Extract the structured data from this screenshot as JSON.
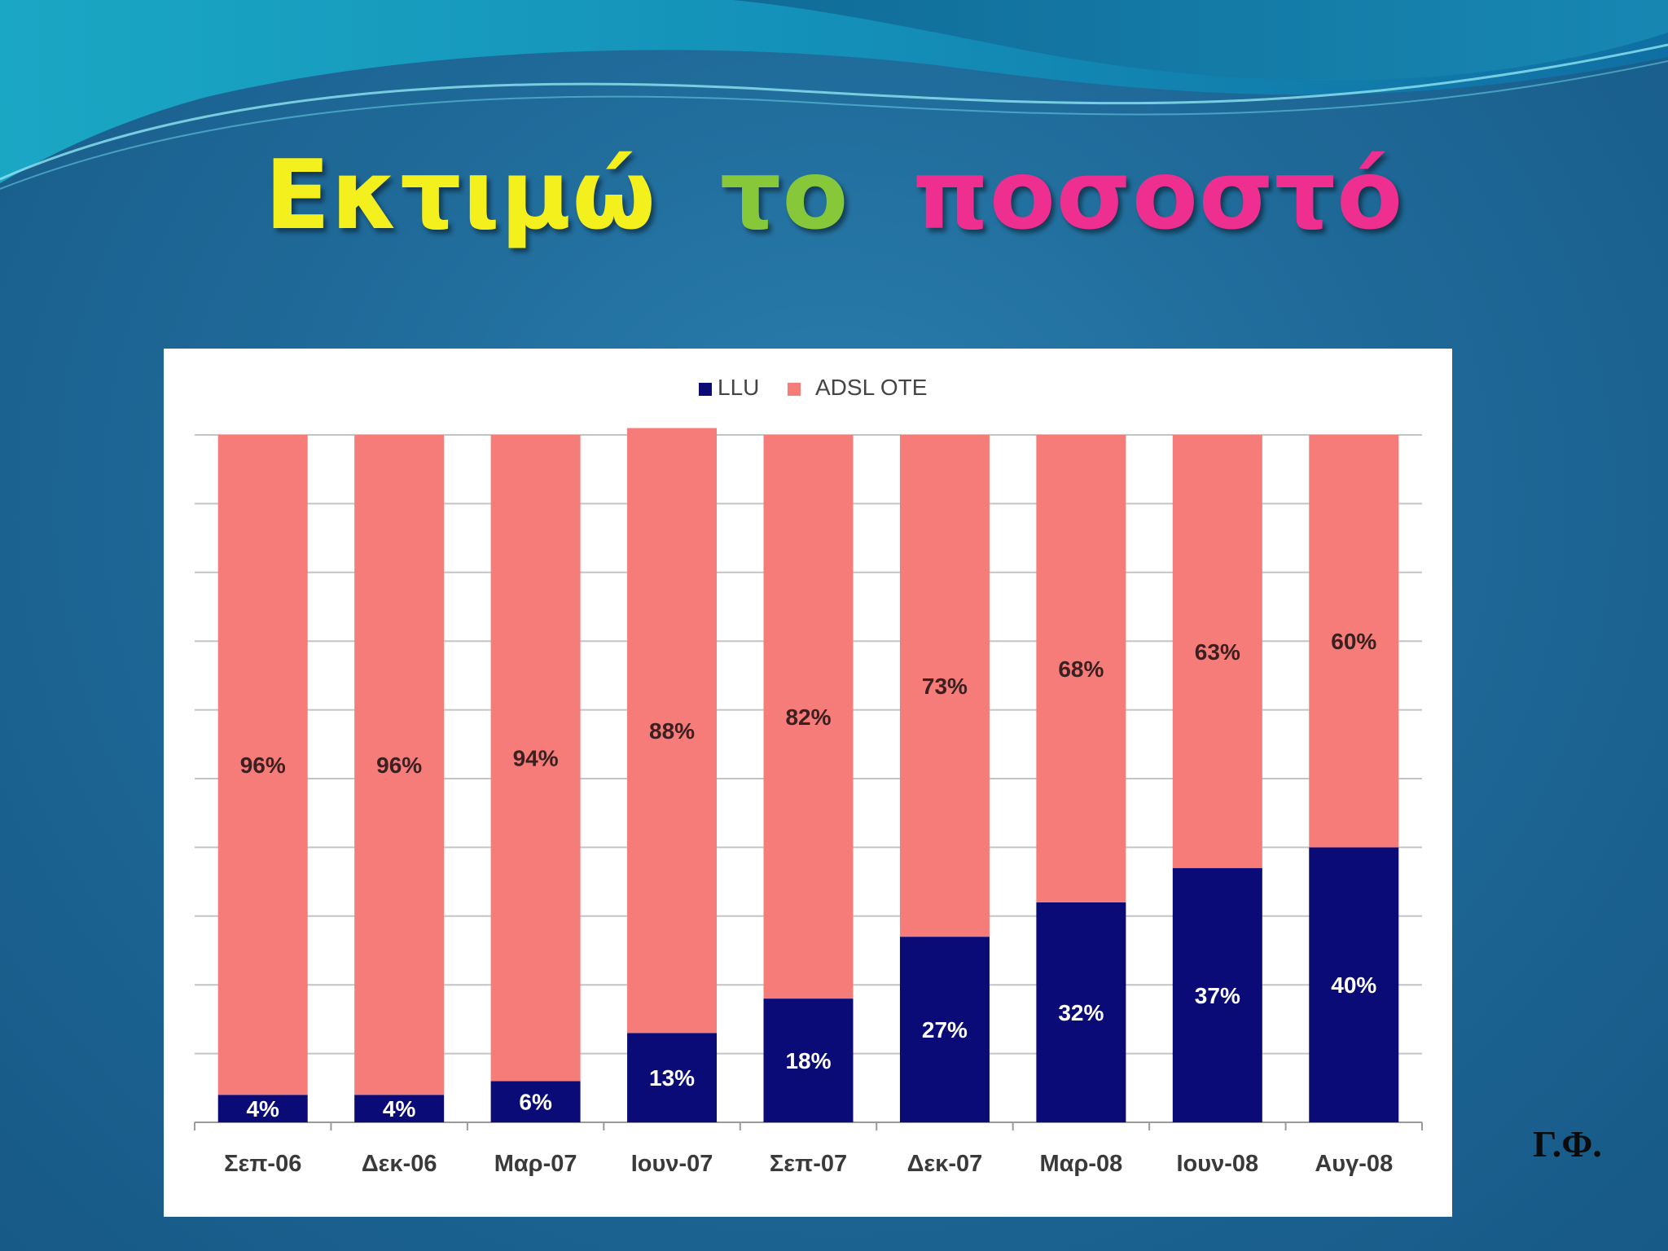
{
  "title": {
    "part1": "Εκτιμώ",
    "part2": "το",
    "part3": "ποσοστό"
  },
  "signature": "Γ.Φ.",
  "colors": {
    "llu": "#0b0b78",
    "adsl": "#f67c7a",
    "title1": "#f4f01e",
    "title2": "#86c83a",
    "title3": "#ee2f8f"
  },
  "chart_data": {
    "type": "bar",
    "stacked": true,
    "categories": [
      "Σεπ-06",
      "Δεκ-06",
      "Μαρ-07",
      "Ιουν-07",
      "Σεπ-07",
      "Δεκ-07",
      "Μαρ-08",
      "Ιουν-08",
      "Αυγ-08"
    ],
    "series": [
      {
        "name": "LLU",
        "values": [
          4,
          4,
          6,
          13,
          18,
          27,
          32,
          37,
          40
        ],
        "labels": [
          "4%",
          "4%",
          "6%",
          "13%",
          "18%",
          "27%",
          "32%",
          "37%",
          "40%"
        ]
      },
      {
        "name": "ADSL OTE",
        "values": [
          96,
          96,
          94,
          88,
          82,
          73,
          68,
          63,
          60
        ],
        "labels": [
          "96%",
          "96%",
          "94%",
          "88%",
          "82%",
          "73%",
          "68%",
          "63%",
          "60%"
        ]
      }
    ],
    "ylim": [
      0,
      100
    ],
    "grid": true,
    "legend": "top-center"
  }
}
